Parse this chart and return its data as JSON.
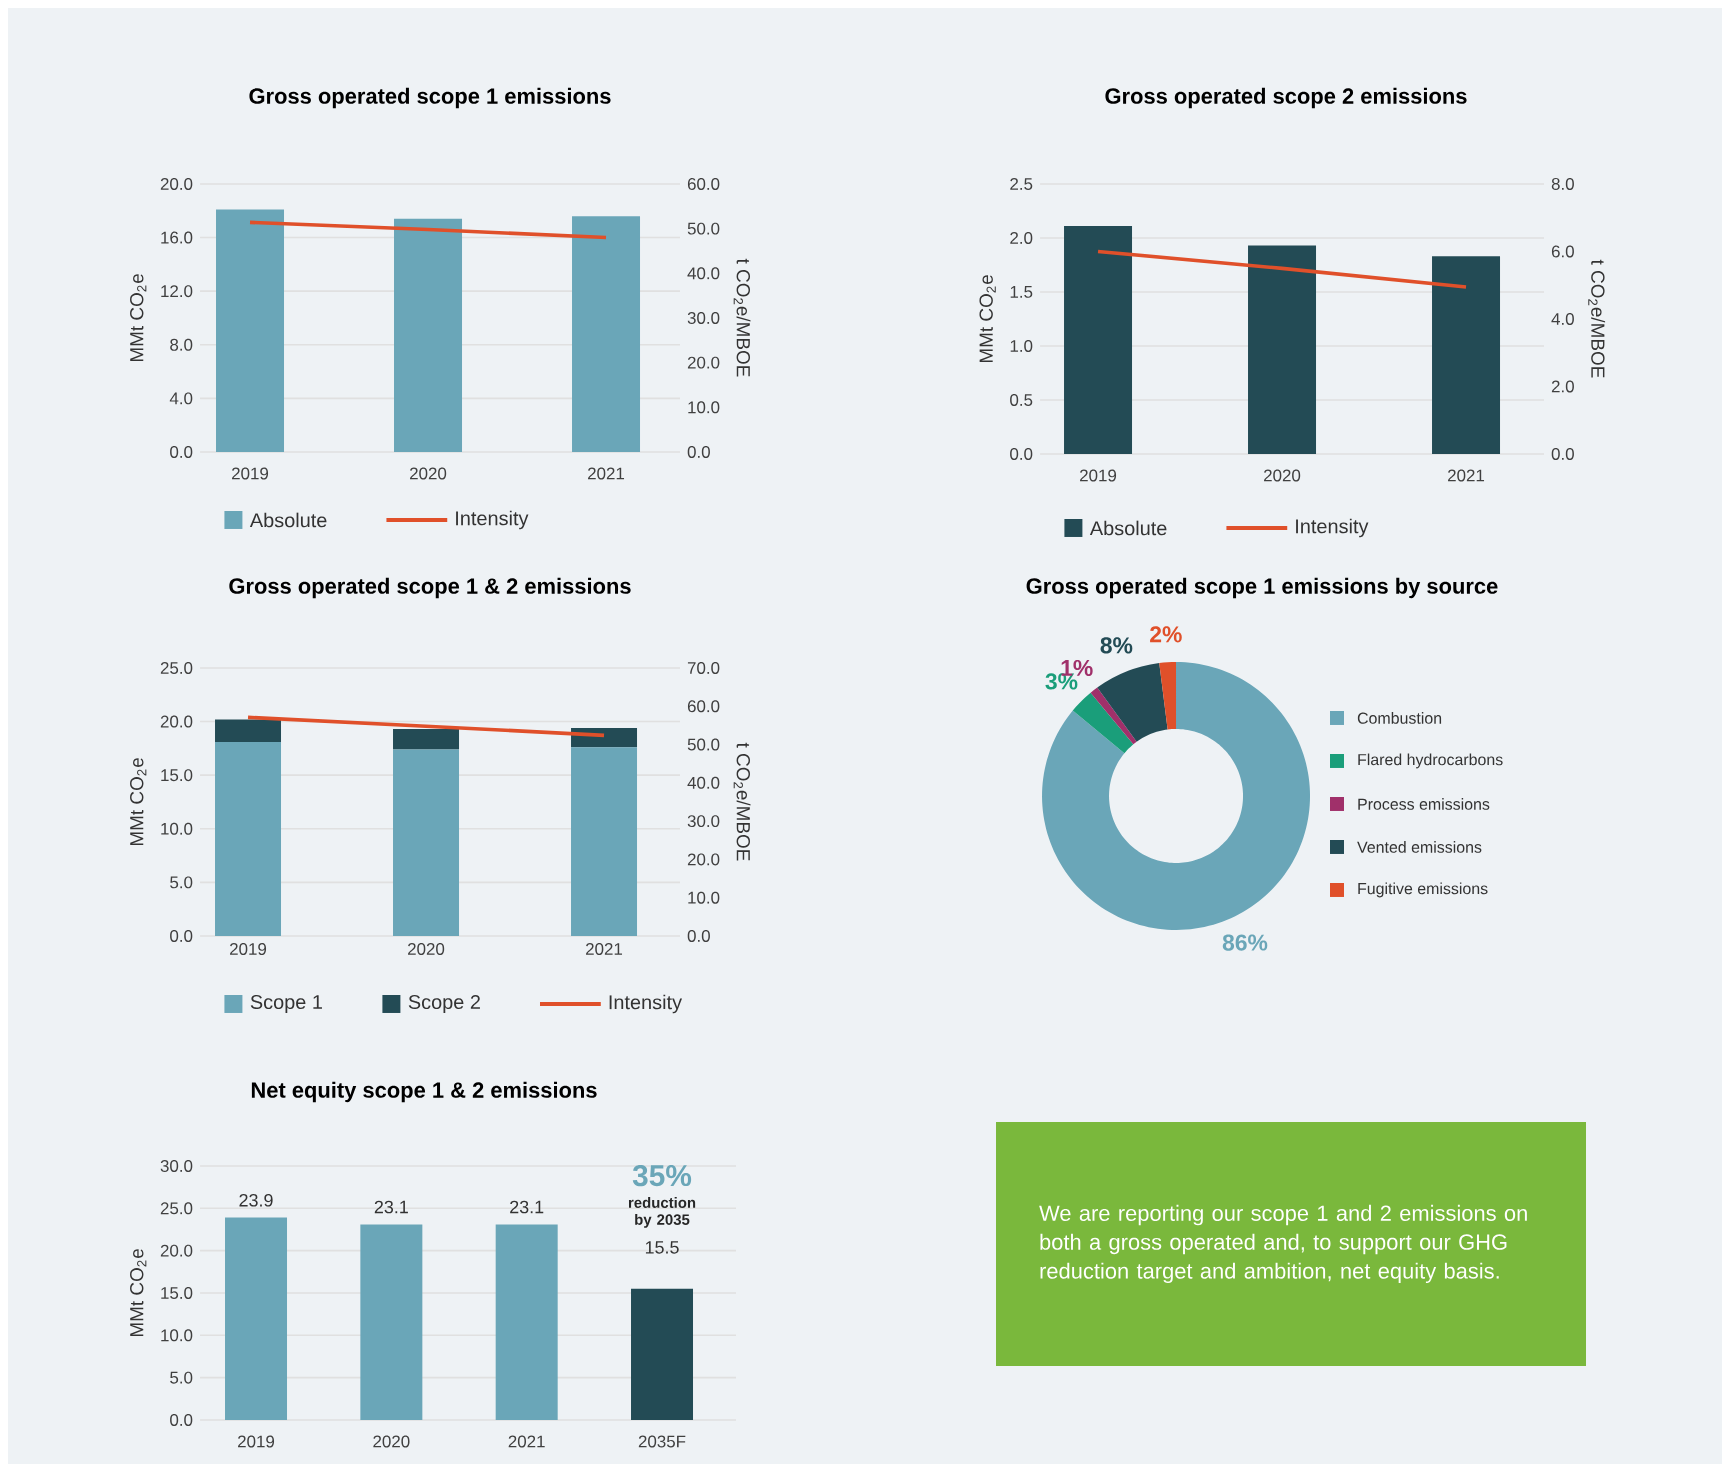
{
  "chart_data": [
    {
      "type": "bar",
      "title": "Gross operated scope 1 emissions",
      "categories": [
        "2019",
        "2020",
        "2021"
      ],
      "ylabel": "MMt CO$_{2}$e",
      "y2label": "t CO$_{2}$e/MBOE",
      "series": [
        {
          "name": "Absolute",
          "type": "bar",
          "color": "#6aa6b8",
          "values": [
            18.1,
            17.4,
            17.6
          ]
        },
        {
          "name": "Intensity",
          "type": "line",
          "axis": "y2",
          "color": "#e0502a",
          "values": [
            51.4,
            49.8,
            48.0
          ]
        }
      ],
      "ylim": [
        0,
        20
      ],
      "yticks": [
        {
          "value": 0,
          "label": "0.0"
        },
        {
          "value": 4,
          "label": "4.0"
        },
        {
          "value": 8,
          "label": "8.0"
        },
        {
          "value": 12,
          "label": "12.0"
        },
        {
          "value": 16,
          "label": "16.0"
        },
        {
          "value": 20,
          "label": "20.0"
        }
      ],
      "y2lim": [
        0,
        60
      ],
      "y2ticks": [
        {
          "value": 0,
          "label": "0.0"
        },
        {
          "value": 10,
          "label": "10.0"
        },
        {
          "value": 20,
          "label": "20.0"
        },
        {
          "value": 30,
          "label": "30.0"
        },
        {
          "value": 40,
          "label": "40.0"
        },
        {
          "value": 50,
          "label": "50.0"
        },
        {
          "value": 60,
          "label": "60.0"
        }
      ],
      "grid": "y",
      "legend": "bottom"
    },
    {
      "type": "bar",
      "title": "Gross operated scope 2 emissions",
      "categories": [
        "2019",
        "2020",
        "2021"
      ],
      "ylabel": "MMt CO$_{2}$e",
      "y2label": "t CO$_{2}$e/MBOE",
      "series": [
        {
          "name": "Absolute",
          "type": "bar",
          "color": "#234b55",
          "values": [
            2.11,
            1.93,
            1.83
          ]
        },
        {
          "name": "Intensity",
          "type": "line",
          "axis": "y2",
          "color": "#e0502a",
          "values": [
            6.0,
            5.5,
            4.95
          ]
        }
      ],
      "ylim": [
        0,
        2.5
      ],
      "yticks": [
        {
          "value": 0,
          "label": "0.0"
        },
        {
          "value": 0.5,
          "label": "0.5"
        },
        {
          "value": 1,
          "label": "1.0"
        },
        {
          "value": 1.5,
          "label": "1.5"
        },
        {
          "value": 2,
          "label": "2.0"
        },
        {
          "value": 2.5,
          "label": "2.5"
        }
      ],
      "y2lim": [
        0,
        8
      ],
      "y2ticks": [
        {
          "value": 0,
          "label": "0.0"
        },
        {
          "value": 2,
          "label": "2.0"
        },
        {
          "value": 4,
          "label": "4.0"
        },
        {
          "value": 6,
          "label": "6.0"
        },
        {
          "value": 8,
          "label": "8.0"
        }
      ],
      "grid": "y",
      "legend": "bottom"
    },
    {
      "type": "bar",
      "title": "Gross operated scope 1 & 2 emissions",
      "categories": [
        "2019",
        "2020",
        "2021"
      ],
      "ylabel": "MMt CO$_{2}$e",
      "y2label": "t CO$_{2}$e/MBOE",
      "stacked": true,
      "series": [
        {
          "name": "Scope 1",
          "type": "bar",
          "color": "#6aa6b8",
          "values": [
            18.1,
            17.4,
            17.6
          ]
        },
        {
          "name": "Scope 2",
          "type": "bar",
          "color": "#234b55",
          "values": [
            2.1,
            1.9,
            1.8
          ]
        },
        {
          "name": "Intensity",
          "type": "line",
          "axis": "y2",
          "color": "#e0502a",
          "values": [
            57.1,
            54.8,
            52.4
          ]
        }
      ],
      "ylim": [
        0,
        25
      ],
      "yticks": [
        {
          "value": 0,
          "label": "0.0"
        },
        {
          "value": 5,
          "label": "5.0"
        },
        {
          "value": 10,
          "label": "10.0"
        },
        {
          "value": 15,
          "label": "15.0"
        },
        {
          "value": 20,
          "label": "20.0"
        },
        {
          "value": 25,
          "label": "25.0"
        }
      ],
      "y2lim": [
        0,
        70
      ],
      "y2ticks": [
        {
          "value": 0,
          "label": "0.0"
        },
        {
          "value": 10,
          "label": "10.0"
        },
        {
          "value": 20,
          "label": "20.0"
        },
        {
          "value": 30,
          "label": "30.0"
        },
        {
          "value": 40,
          "label": "40.0"
        },
        {
          "value": 50,
          "label": "50.0"
        },
        {
          "value": 60,
          "label": "60.0"
        },
        {
          "value": 70,
          "label": "70.0"
        }
      ],
      "grid": "y",
      "legend": "bottom"
    },
    {
      "type": "donut",
      "title": "Gross operated scope 1 emissions by source",
      "categories": [
        "Combustion",
        "Flared hydrocarbons",
        "Process emissions",
        "Vented emissions",
        "Fugitive emissions"
      ],
      "values": [
        86,
        3,
        1,
        8,
        2
      ],
      "colors": [
        "#6aa6b8",
        "#1a9e7a",
        "#a0306a",
        "#234b55",
        "#e0502a"
      ],
      "value_labels": [
        "86%",
        "3%",
        "1%",
        "8%",
        "2%"
      ],
      "legend": "right"
    },
    {
      "type": "bar",
      "title": "Net equity scope 1 & 2 emissions",
      "categories": [
        "2019",
        "2020",
        "2021",
        "2035F"
      ],
      "ylabel": "MMt CO$_{2}$e",
      "values": [
        23.9,
        23.1,
        23.1,
        15.5
      ],
      "colors": [
        "#6aa6b8",
        "#6aa6b8",
        "#6aa6b8",
        "#234b55"
      ],
      "data_labels": true,
      "ylim": [
        0,
        30
      ],
      "yticks": [
        {
          "value": 0,
          "label": "0.0"
        },
        {
          "value": 5,
          "label": "5.0"
        },
        {
          "value": 10,
          "label": "10.0"
        },
        {
          "value": 15,
          "label": "15.0"
        },
        {
          "value": 20,
          "label": "20.0"
        },
        {
          "value": 25,
          "label": "25.0"
        },
        {
          "value": 30,
          "label": "30.0"
        }
      ],
      "grid": "y",
      "annotations": [
        "35%",
        "reduction by 2035"
      ]
    },
    {
      "type": "other",
      "annotations": [
        "We are reporting our scope 1 and 2 emissions on both a gross operated and, to support our GHG reduction target and ambition, net equity basis."
      ]
    }
  ]
}
